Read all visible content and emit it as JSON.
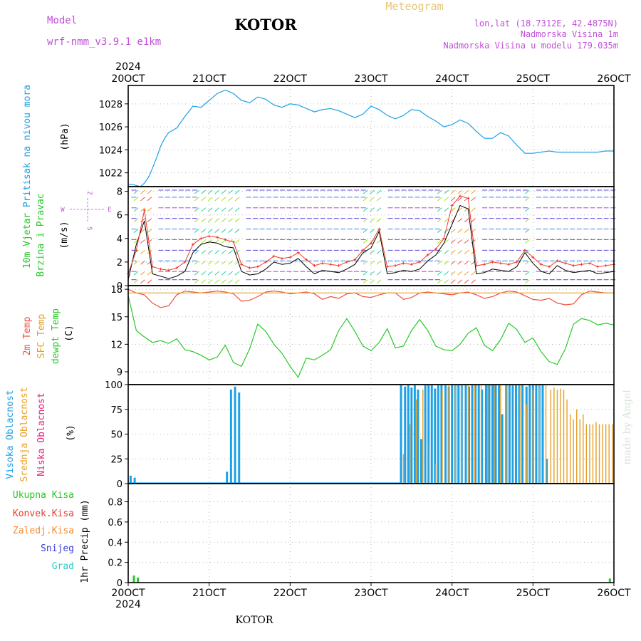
{
  "header": {
    "model_label": "Model",
    "model_name": "wrf-nmm_v3.9.1 e1km",
    "station": "KOTOR",
    "product": "Meteogram",
    "lonlat": "lon,lat (18.7312E, 42.4875N)",
    "altitude": "Nadmorska Visina 1m",
    "model_altitude": "Nadmorska Visina u modelu 179.035m",
    "footer_station": "KOTOR",
    "watermark": "made by Angel"
  },
  "time_axis": {
    "year": "2024",
    "ticks": [
      "20OCT",
      "21OCT",
      "22OCT",
      "23OCT",
      "24OCT",
      "25OCT",
      "26OCT"
    ]
  },
  "colors": {
    "pressure": "#1ea0e6",
    "temp2m": "#f0503c",
    "sfc": "#e6a028",
    "dewpt": "#28c828",
    "wind_speed": "#000000",
    "gust": "#f03c28",
    "high_cloud": "#1ea0e6",
    "mid_cloud": "#e6a028",
    "low_cloud": "#e61e78",
    "precip_total": "#28c828",
    "label_purple": "#c050d8",
    "label_orange": "#e6c878"
  },
  "chart_data": [
    {
      "type": "line",
      "panel": "pressure",
      "ylabel_lines": [
        "Pritisak na nivou mora"
      ],
      "unit": "(hPa)",
      "yticks": [
        1022,
        1024,
        1026,
        1028
      ],
      "ylim": [
        1020.8,
        1029.6
      ],
      "series": [
        {
          "x": [
            0,
            0.05,
            0.1,
            0.15,
            0.2,
            0.25,
            0.3,
            0.35,
            0.4,
            0.45,
            0.5,
            0.6,
            0.7,
            0.8,
            0.9,
            1.0,
            1.1,
            1.2,
            1.3,
            1.4,
            1.5,
            1.6,
            1.7,
            1.8,
            1.9,
            2.0,
            2.1,
            2.2,
            2.3,
            2.4,
            2.5,
            2.6,
            2.7,
            2.8,
            2.9,
            3.0,
            3.1,
            3.2,
            3.3,
            3.4,
            3.5,
            3.6,
            3.7,
            3.8,
            3.9,
            4.0,
            4.1,
            4.2,
            4.3,
            4.4,
            4.5,
            4.6,
            4.7,
            4.8,
            4.9,
            5.0,
            5.1,
            5.2,
            5.3,
            5.4,
            5.5,
            5.6,
            5.7,
            5.8,
            5.9,
            6.0
          ],
          "values": [
            1021.0,
            1021.0,
            1020.9,
            1020.8,
            1021.1,
            1021.6,
            1022.4,
            1023.3,
            1024.3,
            1025.0,
            1025.5,
            1025.9,
            1026.9,
            1027.8,
            1027.7,
            1028.3,
            1028.9,
            1029.2,
            1028.9,
            1028.3,
            1028.1,
            1028.6,
            1028.4,
            1027.9,
            1027.7,
            1028.0,
            1027.9,
            1027.6,
            1027.3,
            1027.5,
            1027.6,
            1027.4,
            1027.1,
            1026.8,
            1027.1,
            1027.8,
            1027.5,
            1027.0,
            1026.7,
            1027.0,
            1027.5,
            1027.4,
            1026.9,
            1026.5,
            1026.0,
            1026.2,
            1026.6,
            1026.3,
            1025.6,
            1025.0,
            1025.0,
            1025.5,
            1025.2,
            1024.4,
            1023.7,
            1023.7,
            1023.8,
            1023.9,
            1023.8,
            1023.8,
            1023.8,
            1023.8,
            1023.8,
            1023.8,
            1023.9,
            1023.9
          ]
        }
      ]
    },
    {
      "type": "line",
      "panel": "wind",
      "ylabel_lines": [
        "10m Vjetar",
        "Brzina i Pravac"
      ],
      "unit": "(m/s)",
      "compass": [
        "Z",
        "W",
        "E",
        "S"
      ],
      "yticks": [
        0,
        2,
        4,
        6,
        8
      ],
      "ylim": [
        0,
        8.4
      ],
      "series": [
        {
          "name": "speed",
          "x": [
            0,
            0.1,
            0.2,
            0.3,
            0.4,
            0.5,
            0.6,
            0.7,
            0.8,
            0.9,
            1.0,
            1.1,
            1.2,
            1.3,
            1.4,
            1.5,
            1.6,
            1.7,
            1.8,
            1.9,
            2.0,
            2.1,
            2.2,
            2.3,
            2.4,
            2.5,
            2.6,
            2.7,
            2.8,
            2.9,
            3.0,
            3.1,
            3.2,
            3.3,
            3.4,
            3.5,
            3.6,
            3.7,
            3.8,
            3.9,
            4.0,
            4.1,
            4.2,
            4.3,
            4.4,
            4.5,
            4.6,
            4.7,
            4.8,
            4.9,
            5.0,
            5.1,
            5.2,
            5.3,
            5.4,
            5.5,
            5.6,
            5.7,
            5.8,
            5.9,
            6.0
          ],
          "values": [
            0.5,
            3.5,
            5.5,
            1.0,
            0.8,
            0.6,
            0.8,
            1.2,
            2.8,
            3.5,
            3.7,
            3.6,
            3.3,
            3.2,
            1.2,
            0.9,
            1.0,
            1.4,
            2.0,
            1.8,
            1.9,
            2.3,
            1.6,
            1.0,
            1.3,
            1.2,
            1.1,
            1.4,
            1.8,
            2.8,
            3.2,
            4.6,
            1.0,
            1.1,
            1.3,
            1.2,
            1.4,
            2.1,
            2.6,
            3.6,
            5.2,
            6.8,
            6.5,
            1.0,
            1.1,
            1.4,
            1.3,
            1.2,
            1.6,
            2.8,
            1.9,
            1.2,
            1.0,
            1.7,
            1.3,
            1.1,
            1.2,
            1.3,
            1.0,
            1.1,
            1.2
          ]
        },
        {
          "name": "gust",
          "x": [
            0,
            0.1,
            0.2,
            0.3,
            0.4,
            0.5,
            0.6,
            0.7,
            0.8,
            0.9,
            1.0,
            1.1,
            1.2,
            1.3,
            1.4,
            1.5,
            1.6,
            1.7,
            1.8,
            1.9,
            2.0,
            2.1,
            2.2,
            2.3,
            2.4,
            2.5,
            2.6,
            2.7,
            2.8,
            2.9,
            3.0,
            3.1,
            3.2,
            3.3,
            3.4,
            3.5,
            3.6,
            3.7,
            3.8,
            3.9,
            4.0,
            4.1,
            4.2,
            4.3,
            4.4,
            4.5,
            4.6,
            4.7,
            4.8,
            4.9,
            5.0,
            5.1,
            5.2,
            5.3,
            5.4,
            5.5,
            5.6,
            5.7,
            5.8,
            5.9,
            6.0
          ],
          "values": [
            1.0,
            3.0,
            6.4,
            1.6,
            1.4,
            1.3,
            1.5,
            2.0,
            3.5,
            4.0,
            4.2,
            4.1,
            3.9,
            3.7,
            1.8,
            1.5,
            1.6,
            2.0,
            2.5,
            2.3,
            2.4,
            2.8,
            2.2,
            1.7,
            1.9,
            1.8,
            1.7,
            2.0,
            2.2,
            3.0,
            3.6,
            4.8,
            1.6,
            1.7,
            1.9,
            1.8,
            2.0,
            2.6,
            3.1,
            4.0,
            6.8,
            7.6,
            7.4,
            1.7,
            1.8,
            2.0,
            1.9,
            1.8,
            2.0,
            3.0,
            2.4,
            1.8,
            1.6,
            2.1,
            1.9,
            1.7,
            1.8,
            1.9,
            1.6,
            1.7,
            1.8
          ]
        }
      ]
    },
    {
      "type": "line",
      "panel": "temperature",
      "ylabel_lines": [
        "2m Temp",
        "SFC Temp",
        "dewpt Temp"
      ],
      "unit": "(C)",
      "yticks": [
        9,
        12,
        15,
        18
      ],
      "ylim": [
        7.6,
        18.4
      ],
      "series": [
        {
          "name": "2m Temp",
          "x": [
            0,
            0.1,
            0.2,
            0.3,
            0.4,
            0.5,
            0.6,
            0.7,
            0.8,
            0.9,
            1.0,
            1.1,
            1.2,
            1.3,
            1.4,
            1.5,
            1.6,
            1.7,
            1.8,
            1.9,
            2.0,
            2.1,
            2.2,
            2.3,
            2.4,
            2.5,
            2.6,
            2.7,
            2.8,
            2.9,
            3.0,
            3.1,
            3.2,
            3.3,
            3.4,
            3.5,
            3.6,
            3.7,
            3.8,
            3.9,
            4.0,
            4.1,
            4.2,
            4.3,
            4.4,
            4.5,
            4.6,
            4.7,
            4.8,
            4.9,
            5.0,
            5.1,
            5.2,
            5.3,
            5.4,
            5.5,
            5.6,
            5.7,
            5.8,
            5.9,
            6.0
          ],
          "values": [
            18.0,
            17.6,
            17.4,
            16.5,
            16.0,
            16.2,
            17.4,
            17.8,
            17.7,
            17.6,
            17.7,
            17.8,
            17.7,
            17.5,
            16.7,
            16.8,
            17.2,
            17.7,
            17.8,
            17.7,
            17.5,
            17.6,
            17.7,
            17.5,
            16.9,
            17.2,
            17.0,
            17.5,
            17.6,
            17.2,
            17.1,
            17.4,
            17.6,
            17.6,
            16.9,
            17.1,
            17.6,
            17.7,
            17.6,
            17.5,
            17.4,
            17.6,
            17.7,
            17.4,
            17.0,
            17.2,
            17.6,
            17.8,
            17.7,
            17.3,
            16.9,
            16.8,
            17.0,
            16.5,
            16.3,
            16.4,
            17.4,
            17.8,
            17.7,
            17.6,
            17.6
          ]
        },
        {
          "name": "SFC Temp",
          "x": [
            0,
            6.0
          ],
          "values": [
            17.6,
            17.6
          ]
        },
        {
          "name": "dewpt Temp",
          "x": [
            0,
            0.1,
            0.2,
            0.3,
            0.4,
            0.5,
            0.6,
            0.7,
            0.8,
            0.9,
            1.0,
            1.1,
            1.2,
            1.3,
            1.4,
            1.5,
            1.6,
            1.7,
            1.8,
            1.9,
            2.0,
            2.1,
            2.2,
            2.3,
            2.4,
            2.5,
            2.6,
            2.7,
            2.8,
            2.9,
            3.0,
            3.1,
            3.2,
            3.3,
            3.4,
            3.5,
            3.6,
            3.7,
            3.8,
            3.9,
            4.0,
            4.1,
            4.2,
            4.3,
            4.4,
            4.5,
            4.6,
            4.7,
            4.8,
            4.9,
            5.0,
            5.1,
            5.2,
            5.3,
            5.4,
            5.5,
            5.6,
            5.7,
            5.8,
            5.9,
            6.0
          ],
          "values": [
            17.3,
            13.5,
            12.8,
            12.2,
            12.4,
            12.1,
            12.6,
            11.4,
            11.2,
            10.8,
            10.3,
            10.6,
            11.9,
            10.0,
            9.6,
            11.5,
            14.2,
            13.4,
            12.0,
            11.0,
            9.6,
            8.4,
            10.5,
            10.3,
            10.8,
            11.4,
            13.5,
            14.8,
            13.4,
            11.8,
            11.3,
            12.2,
            13.7,
            11.6,
            11.8,
            13.5,
            14.7,
            13.5,
            11.8,
            11.4,
            11.3,
            12.0,
            13.2,
            13.8,
            11.9,
            11.3,
            12.5,
            14.3,
            13.6,
            12.2,
            12.7,
            11.2,
            10.1,
            9.8,
            11.5,
            14.2,
            14.8,
            14.6,
            14.1,
            14.3,
            14.1
          ]
        }
      ]
    },
    {
      "type": "bar",
      "panel": "clouds",
      "ylabel_lines": [
        "Visoka Oblacnost",
        "Srednja Oblacnost",
        "Niska Oblacnost"
      ],
      "unit": "(%)",
      "yticks": [
        0,
        25,
        50,
        75,
        100
      ],
      "ylim": [
        0,
        100
      ],
      "series": [
        {
          "name": "Visoka Oblacnost",
          "x": [
            0.03,
            0.08,
            0.12,
            0.17,
            1.22,
            1.27,
            1.32,
            1.37,
            1.42,
            3.37,
            3.42,
            3.46,
            3.5,
            3.54,
            3.58,
            3.62,
            3.67,
            3.71,
            3.75,
            3.79,
            3.83,
            3.87,
            3.92,
            3.96,
            4.0,
            4.04,
            4.08,
            4.12,
            4.17,
            4.21,
            4.25,
            4.29,
            4.33,
            4.37,
            4.42,
            4.46,
            4.5,
            4.54,
            4.58,
            4.62,
            4.67,
            4.71,
            4.75,
            4.79,
            4.83,
            4.87,
            4.92,
            4.96,
            5.0,
            5.04,
            5.08,
            5.12,
            5.17
          ],
          "values": [
            8,
            6,
            1,
            0,
            12,
            95,
            98,
            92,
            0,
            100,
            98,
            100,
            97,
            100,
            95,
            45,
            100,
            100,
            100,
            96,
            100,
            100,
            100,
            98,
            100,
            100,
            100,
            100,
            100,
            98,
            100,
            100,
            100,
            95,
            100,
            100,
            100,
            100,
            100,
            70,
            100,
            100,
            100,
            100,
            100,
            100,
            98,
            100,
            100,
            100,
            100,
            100,
            25
          ]
        },
        {
          "name": "Srednja Oblacnost",
          "x": [
            3.4,
            3.48,
            3.56,
            3.64,
            3.72,
            3.8,
            3.88,
            3.96,
            4.04,
            4.12,
            4.2,
            4.28,
            4.36,
            4.44,
            4.52,
            4.6,
            4.68,
            4.76,
            4.84,
            4.92,
            5.0,
            5.08,
            5.16,
            5.22,
            5.26,
            5.3,
            5.34,
            5.38,
            5.42,
            5.46,
            5.5,
            5.54,
            5.58,
            5.62,
            5.66,
            5.7,
            5.74,
            5.78,
            5.82,
            5.86,
            5.9,
            5.94,
            5.98
          ],
          "values": [
            30,
            60,
            85,
            95,
            40,
            20,
            95,
            100,
            100,
            100,
            100,
            100,
            100,
            100,
            100,
            100,
            100,
            100,
            100,
            80,
            95,
            100,
            100,
            95,
            97,
            95,
            96,
            95,
            85,
            70,
            65,
            75,
            65,
            70,
            60,
            60,
            60,
            62,
            60,
            60,
            60,
            60,
            60
          ]
        },
        {
          "name": "Niska Oblacnost",
          "x": [],
          "values": []
        }
      ]
    },
    {
      "type": "bar",
      "panel": "precip",
      "ylabel_lines": [
        "1hr Precip"
      ],
      "unit": "(mm)",
      "legend": [
        "Ukupna Kisa",
        "Konvek.Kisa",
        "Zaledj.Kisa",
        "Snijeg",
        "Grad"
      ],
      "legend_colors": [
        "#28c828",
        "#f03c28",
        "#f08c32",
        "#3c3cdc",
        "#28c8c8"
      ],
      "yticks": [
        0,
        0.2,
        0.4,
        0.6,
        0.8
      ],
      "ylim": [
        0,
        0.98
      ],
      "series": [
        {
          "name": "Ukupna Kisa",
          "x": [
            0.07,
            0.12,
            5.95
          ],
          "values": [
            0.07,
            0.05,
            0.04
          ]
        }
      ]
    }
  ]
}
